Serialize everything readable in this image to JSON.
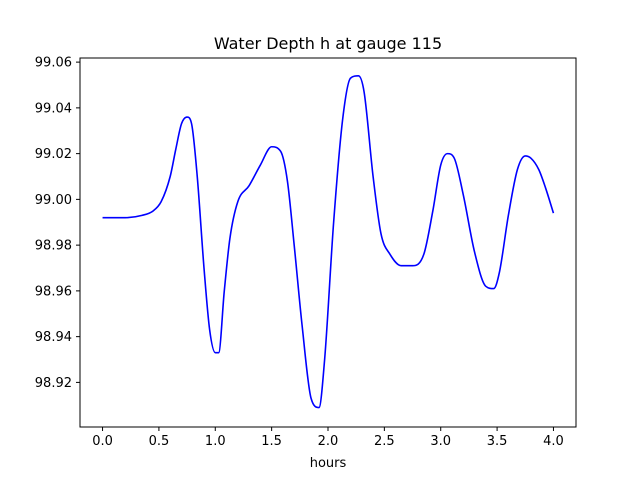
{
  "chart_data": {
    "type": "line",
    "title": "Water Depth h at gauge 115",
    "xlabel": "hours",
    "ylabel": "",
    "xlim": [
      -0.2,
      4.2
    ],
    "ylim": [
      98.9005,
      99.0618
    ],
    "xticks": [
      {
        "value": 0.0,
        "label": "0.0"
      },
      {
        "value": 0.5,
        "label": "0.5"
      },
      {
        "value": 1.0,
        "label": "1.0"
      },
      {
        "value": 1.5,
        "label": "1.5"
      },
      {
        "value": 2.0,
        "label": "2.0"
      },
      {
        "value": 2.5,
        "label": "2.5"
      },
      {
        "value": 3.0,
        "label": "3.0"
      },
      {
        "value": 3.5,
        "label": "3.5"
      },
      {
        "value": 4.0,
        "label": "4.0"
      }
    ],
    "yticks": [
      {
        "value": 98.92,
        "label": "98.92"
      },
      {
        "value": 98.94,
        "label": "98.94"
      },
      {
        "value": 98.96,
        "label": "98.96"
      },
      {
        "value": 98.98,
        "label": "98.98"
      },
      {
        "value": 99.0,
        "label": "99.00"
      },
      {
        "value": 99.02,
        "label": "99.02"
      },
      {
        "value": 99.04,
        "label": "99.04"
      },
      {
        "value": 99.06,
        "label": "99.06"
      }
    ],
    "grid": false,
    "legend": "none",
    "series": [
      {
        "color": "#0000ff",
        "x": [
          0.0,
          0.2,
          0.35,
          0.45,
          0.52,
          0.6,
          0.65,
          0.7,
          0.75,
          0.79,
          0.84,
          0.9,
          0.95,
          1.0,
          1.03,
          1.08,
          1.13,
          1.2,
          1.3,
          1.4,
          1.5,
          1.58,
          1.64,
          1.7,
          1.77,
          1.85,
          1.92,
          1.97,
          2.05,
          2.13,
          2.2,
          2.27,
          2.32,
          2.4,
          2.47,
          2.55,
          2.65,
          2.75,
          2.85,
          2.93,
          3.0,
          3.06,
          3.12,
          3.2,
          3.3,
          3.4,
          3.47,
          3.52,
          3.6,
          3.68,
          3.75,
          3.8,
          3.87,
          3.93,
          4.0
        ],
        "y": [
          98.992,
          98.992,
          98.993,
          98.995,
          98.999,
          99.01,
          99.022,
          99.033,
          99.036,
          99.033,
          99.01,
          98.97,
          98.943,
          98.933,
          98.933,
          98.96,
          98.983,
          98.999,
          99.006,
          99.015,
          99.023,
          99.021,
          99.008,
          98.98,
          98.945,
          98.913,
          98.909,
          98.93,
          98.99,
          99.035,
          99.053,
          99.054,
          99.047,
          99.01,
          98.985,
          98.976,
          98.971,
          98.971,
          98.976,
          98.995,
          99.015,
          99.02,
          99.018,
          99.002,
          98.977,
          98.962,
          98.961,
          98.968,
          98.993,
          99.013,
          99.019,
          99.018,
          99.013,
          99.005,
          98.994
        ]
      }
    ]
  }
}
